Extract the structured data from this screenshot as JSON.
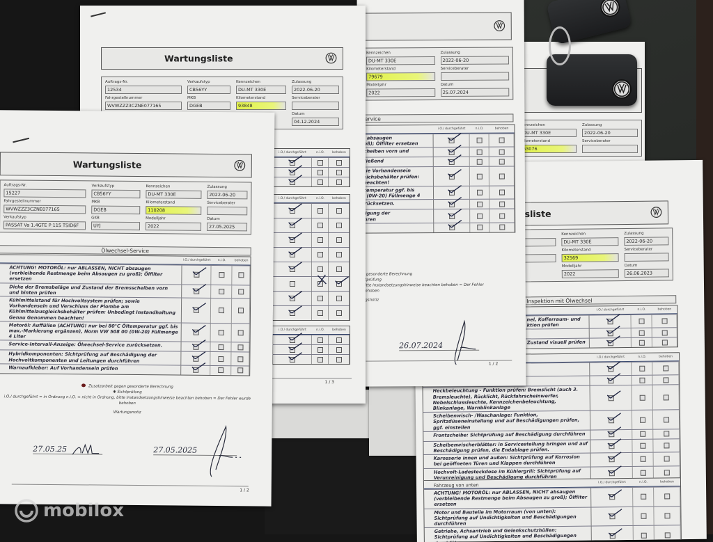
{
  "watermark": "mobilox",
  "table_columns": [
    "i.O./ durchgeführt",
    "n.i.O.",
    "behoben"
  ],
  "docs": {
    "d2025": {
      "title": "Wartungsliste",
      "fields": [
        {
          "label": "Auftrags-Nr.",
          "value": "15227"
        },
        {
          "label": "Verkaufstyp",
          "value": "CB56YY"
        },
        {
          "label": "Kennzeichen",
          "value": "DU-MT 330E"
        },
        {
          "label": "Zulassung",
          "value": "2022-06-20"
        },
        {
          "label": "Fahrgestellnummer",
          "value": "WVWZZZ3CZNE077165"
        },
        {
          "label": "MKB",
          "value": "DGEB"
        },
        {
          "label": "Kilometerstand",
          "value": "110208",
          "highlight": true
        },
        {
          "label": "Serviceberater",
          "value": ""
        },
        {
          "label": "Verkaufstyp",
          "value": "PASSAT Va 1.4GTE P 115 TSID6F"
        },
        {
          "label": "GKB",
          "value": "UYJ"
        },
        {
          "label": "Modelljahr",
          "value": "2022"
        },
        {
          "label": "Datum",
          "value": "27.05.2025"
        }
      ],
      "section": "Ölwechsel-Service",
      "tables": [
        {
          "rows": [
            {
              "text": "ACHTUNG! MOTORÖL: nur ABLASSEN, NICHT absaugen (verbleibende Restmenge beim Absaugen zu groß); Ölfilter ersetzen",
              "marks": [
                "tick",
                "",
                ""
              ]
            },
            {
              "text": "Dicke der Bremsbeläge und Zustand der Bremsscheiben vorn und hinten prüfen",
              "marks": [
                "tick",
                "",
                ""
              ]
            },
            {
              "text": "Kühlmittelstand für Hochvoltsystem prüfen; sowie Vorhandensein und Verschluss der Plombe am Kühlmittelausgleichsbehälter prüfen: Unbedingt Instandhaltung Genau Genommen beachten!",
              "marks": [
                "tick",
                "",
                ""
              ]
            },
            {
              "text": "Motoröl: Auffüllen (ACHTUNG! nur bei 80°C Öltemperatur ggf. bis max.-Markierung ergänzen), Norm VW 508 00 (0W-20) Füllmenge 4 Liter",
              "marks": [
                "tick",
                "",
                ""
              ]
            },
            {
              "text": "Service-Intervall-Anzeige: Ölwechsel-Service zurücksetzen.",
              "marks": [
                "tick",
                "",
                ""
              ]
            },
            {
              "text": "Hybridkomponenten: Sichtprüfung auf Beschädigung der Hochvoltkomponenten und Leitungen durchführen",
              "marks": [
                "tick",
                "",
                ""
              ]
            },
            {
              "text": "Warnaufkleber: Auf Vorhandensein prüfen",
              "marks": [
                "tick",
                "",
                ""
              ]
            }
          ]
        }
      ],
      "legend": {
        "extra_work": "Zusatzarbeit gegen gesonderte Berechnung",
        "visual_check": "Sichtprüfung",
        "explanation": "i.O./ durchgeführt = in Ordnung n.i.O. = nicht in Ordnung, bitte Instandsetzungshinweise beachten behoben = Der Fehler wurde behoben",
        "notes": "Wartungsnotiz"
      },
      "signature_date_1": "27.05.25",
      "signature_date_2": "27.05.2025",
      "page": "1 / 2"
    },
    "d2024_12": {
      "title": "Wartungsliste",
      "fields": [
        {
          "label": "Auftrags-Nr.",
          "value": "12534"
        },
        {
          "label": "Verkaufstyp",
          "value": "CB56YY"
        },
        {
          "label": "Kennzeichen",
          "value": "DU-MT 330E"
        },
        {
          "label": "Zulassung",
          "value": "2022-06-20"
        },
        {
          "label": "Fahrgestellnummer",
          "value": "WVWZZZ3CZNE077165"
        },
        {
          "label": "MKB",
          "value": "DGEB"
        },
        {
          "label": "Kilometerstand",
          "value": "93848",
          "highlight": true
        },
        {
          "label": "Serviceberater",
          "value": ""
        },
        {
          "label": "",
          "value": ""
        },
        {
          "label": "",
          "value": ""
        },
        {
          "label": "",
          "value": ""
        },
        {
          "label": "Datum",
          "value": "04.12.2024"
        }
      ],
      "tables": [
        {
          "rows": [
            {
              "marks": [
                "tick",
                "",
                ""
              ]
            },
            {
              "marks": [
                "tick",
                "",
                ""
              ]
            },
            {
              "marks": [
                "tick",
                "",
                ""
              ]
            }
          ]
        },
        {
          "rows": [
            {
              "marks": [
                "tick",
                "",
                ""
              ]
            },
            {
              "marks": [
                "tick",
                "",
                ""
              ]
            },
            {
              "marks": [
                "tick",
                "",
                ""
              ]
            },
            {
              "marks": [
                "tick",
                "",
                ""
              ]
            },
            {
              "marks": [
                "tick",
                "",
                ""
              ]
            },
            {
              "marks": [
                "",
                "cross",
                "tick"
              ]
            },
            {
              "marks": [
                "tick",
                "",
                ""
              ]
            },
            {
              "marks": [
                "tick",
                "",
                ""
              ]
            }
          ]
        },
        {
          "rows": [
            {
              "marks": [
                "tick",
                "",
                ""
              ]
            },
            {
              "marks": [
                "tick",
                "",
                ""
              ]
            },
            {
              "marks": [
                "tick",
                "",
                ""
              ]
            }
          ]
        }
      ],
      "page": "1 / 3"
    },
    "d2024_07": {
      "fields": [
        {
          "label": "Kennzeichen",
          "value": "DU-MT 330E"
        },
        {
          "label": "Zulassung",
          "value": "2022-06-20"
        },
        {
          "label": "Kilometerstand",
          "value": "79679",
          "highlight": true
        },
        {
          "label": "Serviceberater",
          "value": ""
        },
        {
          "label": "Modelljahr",
          "value": "2022"
        },
        {
          "label": "Datum",
          "value": "25.07.2024"
        }
      ],
      "section": "-Service",
      "tables": [
        {
          "rows": [
            {
              "text": "HT absaugen\ngroß); Ölfilter ersetzen",
              "marks": [
                "tick",
                "",
                ""
              ]
            },
            {
              "text": "sscheiben vorn und",
              "marks": [
                "tick",
                "",
                ""
              ]
            },
            {
              "text": "chließend",
              "marks": [
                "tick",
                "",
                ""
              ]
            },
            {
              "text": "owie Vorhandensein\ngleichsbehälter prüfen:\nn beachten!",
              "marks": [
                "tick",
                "",
                ""
              ]
            },
            {
              "text": "Öltemperatur ggf. bis\n00 (0W-20) Füllmenge 4",
              "marks": [
                "tick",
                "",
                ""
              ]
            },
            {
              "text": "zurücksetzen.",
              "marks": [
                "tick",
                "",
                ""
              ]
            },
            {
              "text": "ädigung der\nführen",
              "marks": [
                "tick",
                "",
                ""
              ]
            },
            {
              "text": "",
              "marks": [
                "tick",
                "",
                ""
              ]
            }
          ]
        }
      ],
      "legend": {
        "extra_work": "n gesonderte Berechnung",
        "visual_check": "htprüfung",
        "explanation": "bitte Instandsetzungshinweise beachten behoben = Der Fehler",
        "fixed": "behoben",
        "notes": "ngsnotiz"
      },
      "signature_date": "26.07.2024",
      "page": "1 / 2"
    },
    "d_c": {
      "fields": [
        {
          "label": "Kennzeichen",
          "value": "DU-MT 330E"
        },
        {
          "label": "Zulassung",
          "value": "2022-06-20"
        },
        {
          "label": "Kilometerstand",
          "value": "63076",
          "highlight": true
        },
        {
          "label": "Serviceberater",
          "value": ""
        }
      ]
    },
    "d2023": {
      "title": "Wartungsliste",
      "fields": [
        {
          "label": "Verkaufstyp",
          "value": "CB56YY"
        },
        {
          "label": "Kennzeichen",
          "value": "DU-MT 330E"
        },
        {
          "label": "Zulassung",
          "value": "2022-06-20"
        },
        {
          "label": "MKB",
          "value": "DGEB"
        },
        {
          "label": "Kilometerstand",
          "value": "32569",
          "highlight": true
        },
        {
          "label": "Serviceberater",
          "value": ""
        },
        {
          "label": "",
          "value": ""
        },
        {
          "label": "Modelljahr",
          "value": "2022"
        },
        {
          "label": "Datum",
          "value": "26.06.2023"
        }
      ],
      "section": "Inspektion mit Ölwechsel",
      "tables": [
        {
          "rows": [
            {
              "text": "nel, Kofferraum- und\nktion prüfen",
              "marks": [
                "tick",
                "",
                ""
              ]
            },
            {
              "text": "",
              "marks": [
                "tick",
                "",
                ""
              ]
            },
            {
              "text": "Zustand visuell prüfen",
              "marks": [
                "tick",
                "",
                ""
              ]
            }
          ]
        },
        {
          "rows": [
            {
              "text": "fen: Standlicht, Abblendlicht,\nnkanlage, Warnblinkanlage",
              "marks": [
                "tick",
                "",
                ""
              ]
            },
            {
              "text": "Automatische …g: Funktion prüfen",
              "marks": [
                "tick",
                "",
                ""
              ]
            },
            {
              "text": "Heckbeleuchtung - Funktion prüfen: Bremslicht (auch 3. Bremsleuchte), Rücklicht, Rückfahrscheinwerfer, Nebelschlussleuchte, Kennzeichenbeleuchtung, Blinkanlage, Warnblinkanlage",
              "marks": [
                "tick",
                "",
                ""
              ]
            },
            {
              "text": "Scheibenwisch- /Waschanlage: Funktion, Spritzdüseneinstellung und auf Beschädigungen prüfen, ggf. einstellen",
              "marks": [
                "tick",
                "",
                ""
              ]
            },
            {
              "text": "Frontscheibe: Sichtprüfung auf Beschädigung durchführen",
              "marks": [
                "tick",
                "",
                ""
              ]
            },
            {
              "text": "Scheibenwischerblätter: in Servicestellung bringen und auf Beschädigung prüfen, die Endablage prüfen.",
              "marks": [
                "tick",
                "",
                ""
              ]
            },
            {
              "text": "Karosserie innen und außen: Sichtprüfung auf Korrosion bei geöffneten Türen und Klappen durchführen",
              "marks": [
                "tick",
                "",
                ""
              ]
            },
            {
              "text": "Hochvolt-Ladesteckdose im Kühlergrill: Sichtprüfung auf Verunreinigung und Beschädigung durchführen",
              "marks": [
                "tick",
                "",
                ""
              ]
            }
          ]
        },
        {
          "title": "Fahrzeug von unten",
          "rows": [
            {
              "text": "ACHTUNG! MOTORÖL: nur ABLASSEN, NICHT absaugen (verbleibende Restmenge beim Absaugen zu groß); Ölfilter ersetzen",
              "marks": [
                "tick",
                "",
                ""
              ]
            },
            {
              "text": "Motor und Bauteile im Motorraum (von unten): Sichtprüfung auf Undichtigkeiten und Beschädigungen durchführen",
              "marks": [
                "tick",
                "",
                ""
              ]
            },
            {
              "text": "Getriebe, Achsantrieb und Gelenkschutzhüllen: Sichtprüfung auf Undichtigkeiten und Beschädigungen durchführen",
              "marks": [
                "tick",
                "",
                ""
              ]
            }
          ]
        }
      ]
    }
  }
}
